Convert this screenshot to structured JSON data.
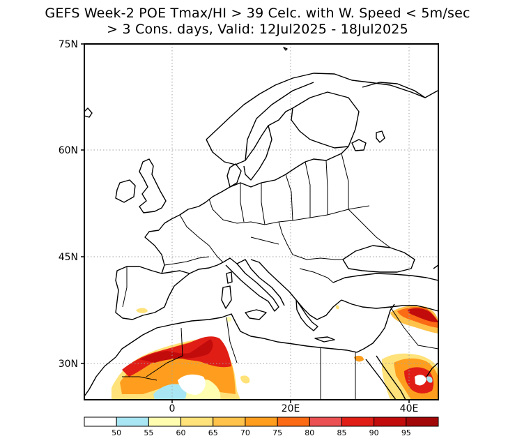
{
  "title": {
    "line1": "GEFS Week-2 POE Tmax/HI > 39 Celc. with W. Speed < 5m/sec",
    "line2": "> 3 Cons. days, Valid: 12Jul2025 - 18Jul2025"
  },
  "map": {
    "region": "Europe, North Africa and Middle East",
    "lon_range": [
      -15,
      45
    ],
    "lat_range": [
      25,
      75
    ],
    "grid": "dotted",
    "lat_ticks": [
      "75N",
      "60N",
      "45N",
      "30N"
    ],
    "lon_ticks": [
      "0",
      "20E",
      "40E"
    ]
  },
  "colorbar": {
    "labels": [
      "50",
      "55",
      "60",
      "65",
      "70",
      "75",
      "80",
      "85",
      "90",
      "95"
    ],
    "colors": [
      "#ffffff",
      "#a8e6f3",
      "#fffdb0",
      "#ffe27a",
      "#ffc24a",
      "#ff9e1e",
      "#fb6a14",
      "#eb5052",
      "#e01e16",
      "#c20b0b",
      "#a30808"
    ]
  }
}
